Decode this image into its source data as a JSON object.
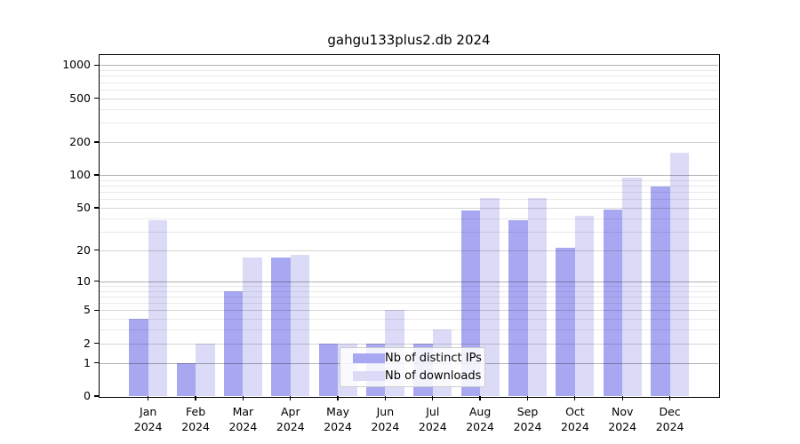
{
  "chart_data": {
    "type": "bar",
    "title": "gahgu133plus2.db 2024",
    "year": "2024",
    "months": [
      "Jan",
      "Feb",
      "Mar",
      "Apr",
      "May",
      "Jun",
      "Jul",
      "Aug",
      "Sep",
      "Oct",
      "Nov",
      "Dec"
    ],
    "series": [
      {
        "name": "Nb of distinct IPs",
        "color": "#a8a8f2",
        "values": [
          4,
          1,
          8,
          17,
          2,
          2,
          2,
          47,
          38,
          21,
          48,
          78
        ]
      },
      {
        "name": "Nb of downloads",
        "color": "#dbdbf7",
        "values": [
          38,
          2,
          17,
          18,
          2,
          5,
          3,
          61,
          62,
          42,
          95,
          160
        ]
      }
    ],
    "y_axis": {
      "scale": "log10(1+y)",
      "ticks": [
        0,
        1,
        2,
        5,
        10,
        20,
        50,
        100,
        200,
        500,
        1000
      ],
      "ylim": [
        0,
        1230
      ],
      "grid": true
    },
    "legend": {
      "position": "bottom-center",
      "entries": [
        "Nb of distinct IPs",
        "Nb of downloads"
      ]
    },
    "style": {
      "bar_color_ips": "#a8a8f2",
      "bar_color_downloads": "#dbdbf7",
      "axis_color": "#000000",
      "grid_major": "#b3b3b3",
      "grid_mid": "#d4d4d4",
      "grid_minor": "#eaeaea"
    }
  }
}
